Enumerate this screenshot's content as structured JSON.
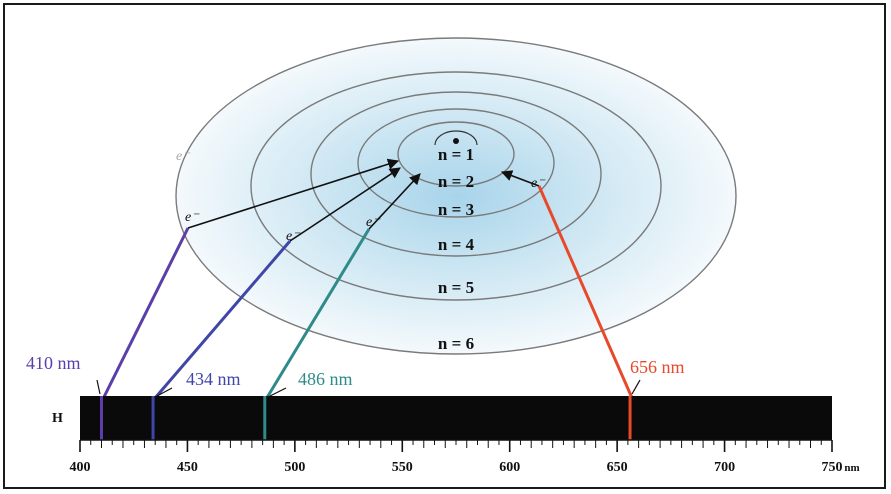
{
  "levels": [
    "n = 1",
    "n = 2",
    "n = 3",
    "n = 4",
    "n = 5",
    "n = 6"
  ],
  "electron_label": "e⁻",
  "element_label": "H",
  "spectral_lines": [
    {
      "wavelength": 410,
      "label": "410 nm",
      "color": "#5b3ea8",
      "from_level": 6,
      "to_level": 2
    },
    {
      "wavelength": 434,
      "label": "434 nm",
      "color": "#3f46a8",
      "from_level": 5,
      "to_level": 2
    },
    {
      "wavelength": 486,
      "label": "486 nm",
      "color": "#2f8a8a",
      "from_level": 4,
      "to_level": 2
    },
    {
      "wavelength": 656,
      "label": "656 nm",
      "color": "#e8492a",
      "from_level": 3,
      "to_level": 2
    }
  ],
  "axis": {
    "ticks": [
      "400",
      "450",
      "500",
      "550",
      "600",
      "650",
      "700",
      "750"
    ],
    "unit": "nm",
    "min": 400,
    "max": 750
  }
}
